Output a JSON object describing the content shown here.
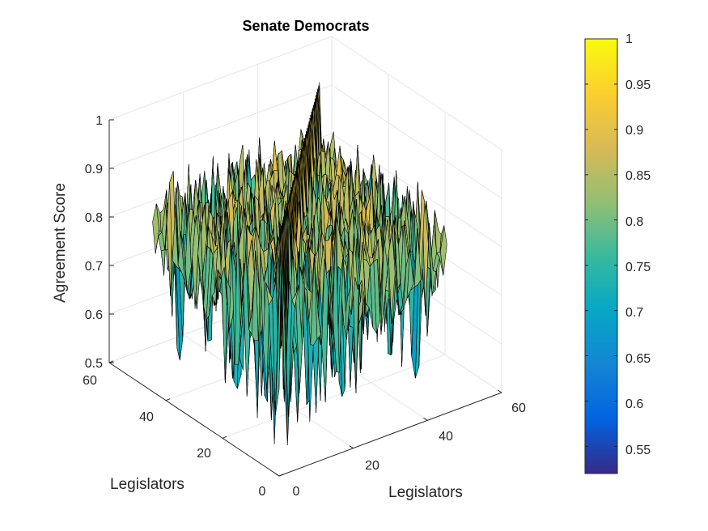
{
  "chart_data": {
    "type": "surface",
    "title": "Senate Democrats",
    "xlabel": "Legislators",
    "ylabel": "Legislators",
    "zlabel": "Agreement Score",
    "x_ticks": [
      "0",
      "20",
      "40",
      "60"
    ],
    "y_ticks": [
      "0",
      "20",
      "40",
      "60"
    ],
    "z_ticks": [
      "0.5",
      "0.6",
      "0.7",
      "0.8",
      "0.9",
      "1"
    ],
    "xlim": [
      0,
      60
    ],
    "ylim": [
      0,
      60
    ],
    "zlim": [
      0.5,
      1
    ],
    "grid": true,
    "colormap": "parula",
    "colorbar": {
      "range": [
        0.52,
        1.0
      ],
      "ticks": [
        "0.55",
        "0.6",
        "0.65",
        "0.7",
        "0.75",
        "0.8",
        "0.85",
        "0.9",
        "0.95",
        "1"
      ],
      "placement": "right"
    },
    "n_legislators": 46,
    "diagonal_value": 1.0,
    "approx_mean_agreement": 0.8,
    "approx_value_range": [
      0.52,
      0.98
    ]
  }
}
